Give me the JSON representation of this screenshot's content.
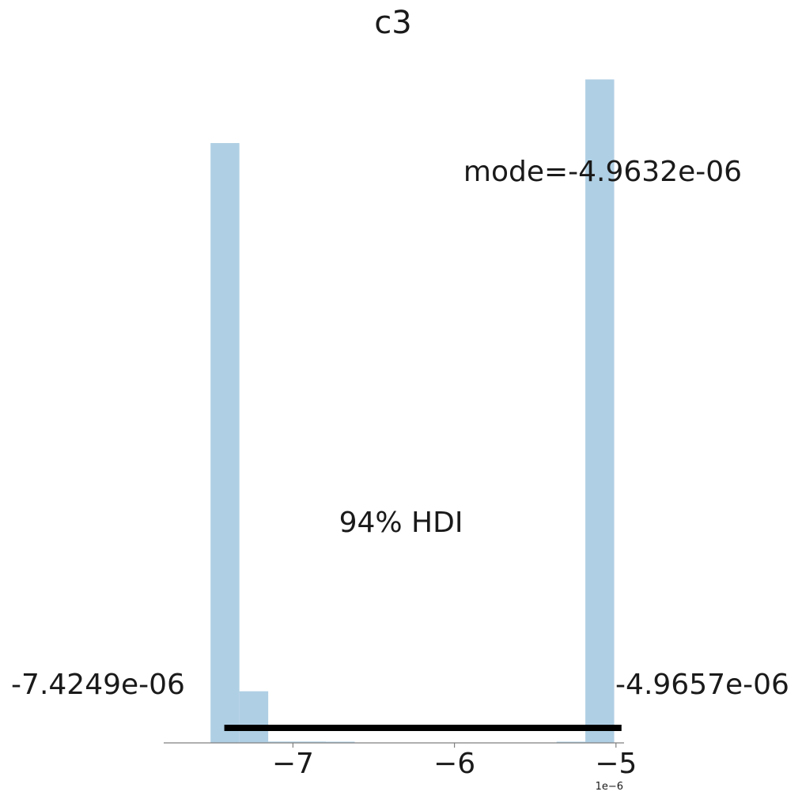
{
  "chart_data": {
    "type": "bar",
    "title": "c3",
    "xlabel": "",
    "ylabel": "",
    "x_offset_label": "1e−6",
    "xlim": [
      -7.8,
      -4.95
    ],
    "bins": {
      "width": 0.1785,
      "lefts": [
        -7.51,
        -7.3315,
        -7.153,
        -6.9745,
        -6.796,
        -6.6175,
        -6.439,
        -6.2605,
        -6.082,
        -5.9035,
        -5.725,
        -5.5465,
        -5.368,
        -5.1895
      ],
      "counts": [
        0.895,
        0.077,
        0.002,
        0.002,
        0.001,
        0.0,
        0.0,
        0.0,
        0.0,
        0.0,
        0.0,
        0.0,
        0.001,
        0.99
      ]
    },
    "ylim": [
      0,
      1.0
    ],
    "x_ticks": [
      {
        "value": -7,
        "label": "−7"
      },
      {
        "value": -6,
        "label": "−6"
      },
      {
        "value": -5,
        "label": "−5"
      }
    ],
    "hdi": {
      "label": "94% HDI",
      "low": -7.4249,
      "high": -4.9657,
      "low_label": "-7.4249e-06",
      "high_label": "-4.9657e-06"
    },
    "mode_label": "mode=-4.9632e-06",
    "bar_color": "#afcfe4",
    "hdi_color": "#000000",
    "axis_color": "#808080",
    "text_color": "#1a1a1a"
  }
}
